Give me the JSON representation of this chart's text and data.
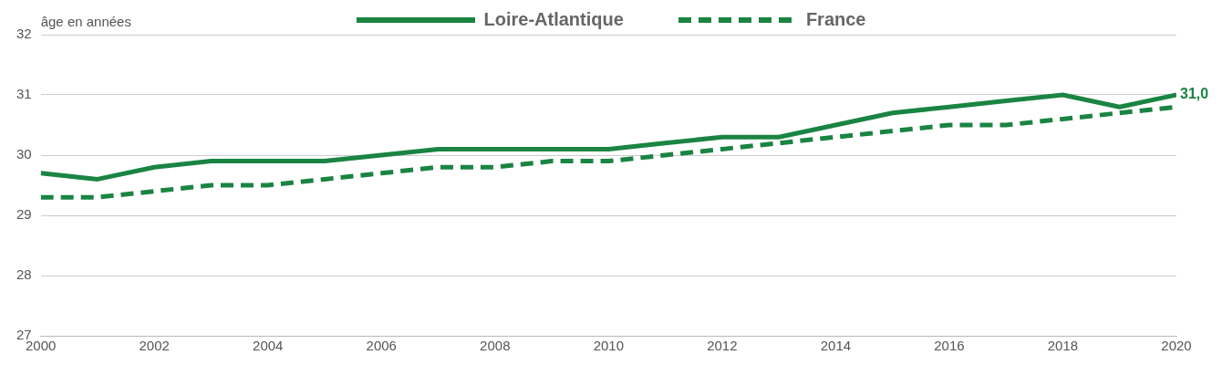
{
  "chart_data": {
    "type": "line",
    "ylabel": "âge en années",
    "x": [
      2000,
      2001,
      2002,
      2003,
      2004,
      2005,
      2006,
      2007,
      2008,
      2009,
      2010,
      2011,
      2012,
      2013,
      2014,
      2015,
      2016,
      2017,
      2018,
      2019,
      2020
    ],
    "series": [
      {
        "name": "Loire-Atlantique",
        "color": "#1a8442",
        "line_style": "solid",
        "values": [
          29.7,
          29.6,
          29.8,
          29.9,
          29.9,
          29.9,
          30.0,
          30.1,
          30.1,
          30.1,
          30.1,
          30.2,
          30.3,
          30.3,
          30.5,
          30.7,
          30.8,
          30.9,
          31.0,
          30.8,
          31.0
        ]
      },
      {
        "name": "France",
        "color": "#1a8442",
        "line_style": "dashed",
        "values": [
          29.3,
          29.3,
          29.4,
          29.5,
          29.5,
          29.6,
          29.7,
          29.8,
          29.8,
          29.9,
          29.9,
          30.0,
          30.1,
          30.2,
          30.3,
          30.4,
          30.5,
          30.5,
          30.6,
          30.7,
          30.8
        ]
      }
    ],
    "xlim": [
      2000,
      2020
    ],
    "xticks": [
      2000,
      2002,
      2004,
      2006,
      2008,
      2010,
      2012,
      2014,
      2016,
      2018,
      2020
    ],
    "ylim": [
      27,
      32
    ],
    "yticks": [
      27,
      28,
      29,
      30,
      31,
      32
    ],
    "grid": "y",
    "legend": "top",
    "marker": "none",
    "annotations": [
      {
        "text": "31,0",
        "x": 2020,
        "y": 31.0
      }
    ]
  }
}
